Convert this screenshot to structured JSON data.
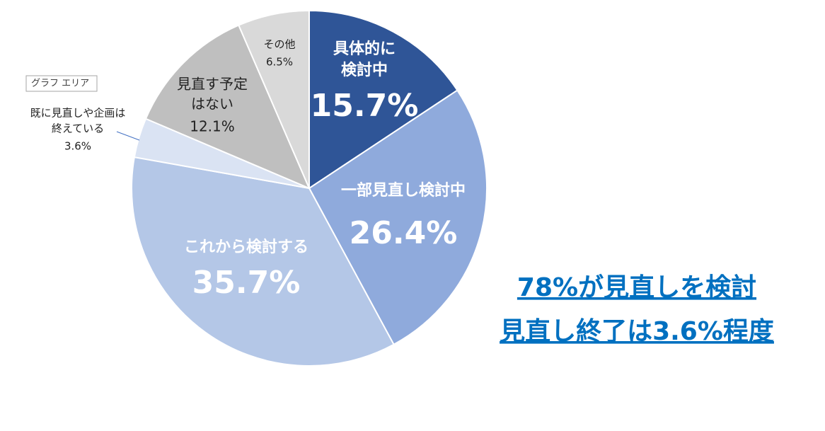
{
  "chart_data": {
    "type": "pie",
    "categories": [
      [
        "具体的に",
        "検討中"
      ],
      [
        "一部見直し検討中"
      ],
      [
        "これから検討する"
      ],
      [
        "既に見直しや企画は",
        "終えている"
      ],
      [
        "見直す予定",
        "はない"
      ],
      [
        "その他"
      ]
    ],
    "values": [
      15.7,
      26.4,
      35.7,
      3.6,
      12.1,
      6.5
    ],
    "value_labels": [
      "15.7%",
      "26.4%",
      "35.7%",
      "3.6%",
      "12.1%",
      "6.5%"
    ],
    "colors": [
      "#2f5597",
      "#8faadc",
      "#b4c7e7",
      "#dae3f3",
      "#bfbfbf",
      "#d9d9d9"
    ],
    "annotations": [
      "78%が見直しを検討",
      "見直し終了は3.6%程度"
    ],
    "tooltip": "グラフ エリア"
  }
}
